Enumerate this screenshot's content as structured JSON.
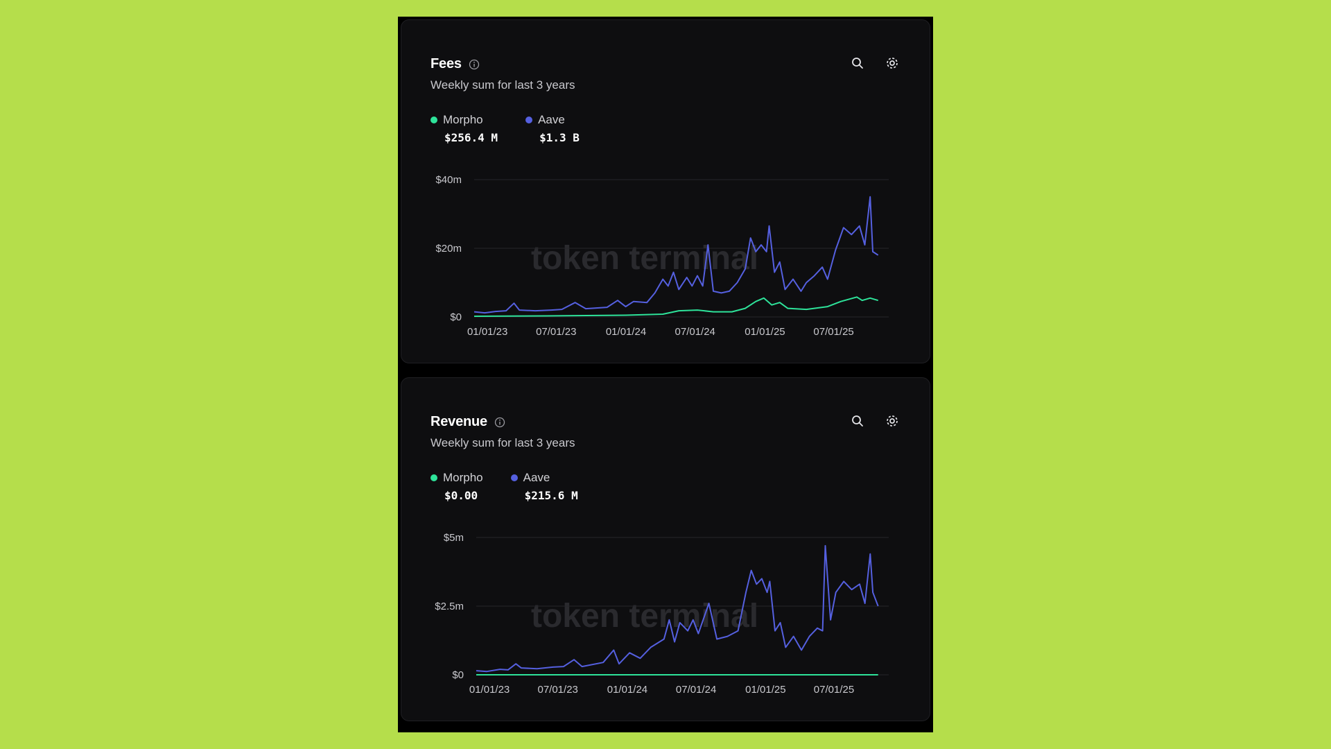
{
  "colors": {
    "background": "#b5de4b",
    "morpho": "#2ee39a",
    "aave": "#5560e0",
    "grid": "#25252a"
  },
  "icons": {
    "info": "info-icon",
    "search": "search-icon",
    "settings": "gear-icon"
  },
  "watermark": "token terminal",
  "fees": {
    "title": "Fees",
    "subtitle": "Weekly sum for last 3 years",
    "legend": [
      {
        "name": "Morpho",
        "value": "$256.4 M"
      },
      {
        "name": "Aave",
        "value": "$1.3 B"
      }
    ]
  },
  "revenue": {
    "title": "Revenue",
    "subtitle": "Weekly sum for last 3 years",
    "legend": [
      {
        "name": "Morpho",
        "value": "$0.00"
      },
      {
        "name": "Aave",
        "value": "$215.6 M"
      }
    ]
  },
  "chart_data": [
    {
      "type": "line",
      "title": "Fees",
      "x_tick_labels": [
        "01/01/23",
        "07/01/23",
        "01/01/24",
        "07/01/24",
        "01/01/25",
        "07/01/25"
      ],
      "y_tick_labels": [
        "$0",
        "$20m",
        "$40m"
      ],
      "ylim": [
        0,
        40
      ],
      "y_unit": "millions USD",
      "grid": true,
      "legend_position": "top-left",
      "x_start": "2022-11-27",
      "x_end": "2025-11-23",
      "series": [
        {
          "name": "Aave",
          "color": "#5560e0",
          "points": [
            [
              "2022-11-27",
              1.5
            ],
            [
              "2022-12-25",
              1.2
            ],
            [
              "2023-01-22",
              1.6
            ],
            [
              "2023-02-19",
              1.8
            ],
            [
              "2023-03-12",
              4.0
            ],
            [
              "2023-03-26",
              2.0
            ],
            [
              "2023-05-07",
              1.8
            ],
            [
              "2023-06-18",
              2.0
            ],
            [
              "2023-07-16",
              2.2
            ],
            [
              "2023-08-20",
              4.2
            ],
            [
              "2023-09-17",
              2.4
            ],
            [
              "2023-11-12",
              2.8
            ],
            [
              "2023-12-10",
              4.8
            ],
            [
              "2023-12-31",
              3.0
            ],
            [
              "2024-01-21",
              4.5
            ],
            [
              "2024-02-25",
              4.2
            ],
            [
              "2024-03-17",
              7.0
            ],
            [
              "2024-04-07",
              11.0
            ],
            [
              "2024-04-21",
              9.0
            ],
            [
              "2024-05-05",
              13.0
            ],
            [
              "2024-05-19",
              8.0
            ],
            [
              "2024-06-09",
              11.5
            ],
            [
              "2024-06-23",
              9.0
            ],
            [
              "2024-07-07",
              12.0
            ],
            [
              "2024-07-21",
              9.0
            ],
            [
              "2024-08-04",
              21.0
            ],
            [
              "2024-08-18",
              7.5
            ],
            [
              "2024-09-08",
              7.0
            ],
            [
              "2024-09-29",
              7.5
            ],
            [
              "2024-10-20",
              10.0
            ],
            [
              "2024-11-10",
              14.0
            ],
            [
              "2024-11-24",
              23.0
            ],
            [
              "2024-12-08",
              19.0
            ],
            [
              "2024-12-22",
              21.0
            ],
            [
              "2025-01-05",
              19.0
            ],
            [
              "2025-01-12",
              26.5
            ],
            [
              "2025-01-26",
              13.0
            ],
            [
              "2025-02-09",
              16.0
            ],
            [
              "2025-02-23",
              8.0
            ],
            [
              "2025-03-16",
              11.0
            ],
            [
              "2025-04-06",
              7.5
            ],
            [
              "2025-04-20",
              10.0
            ],
            [
              "2025-05-11",
              12.0
            ],
            [
              "2025-06-01",
              14.5
            ],
            [
              "2025-06-15",
              11.0
            ],
            [
              "2025-07-06",
              19.5
            ],
            [
              "2025-07-27",
              26.0
            ],
            [
              "2025-08-17",
              24.0
            ],
            [
              "2025-09-07",
              26.5
            ],
            [
              "2025-09-21",
              21.0
            ],
            [
              "2025-10-05",
              35.0
            ],
            [
              "2025-10-12",
              19.0
            ],
            [
              "2025-10-26",
              18.0
            ]
          ]
        },
        {
          "name": "Morpho",
          "color": "#2ee39a",
          "points": [
            [
              "2022-11-27",
              0.2
            ],
            [
              "2023-06-04",
              0.3
            ],
            [
              "2023-12-31",
              0.5
            ],
            [
              "2024-04-07",
              0.8
            ],
            [
              "2024-05-19",
              1.8
            ],
            [
              "2024-07-07",
              2.0
            ],
            [
              "2024-08-18",
              1.5
            ],
            [
              "2024-10-06",
              1.5
            ],
            [
              "2024-11-10",
              2.5
            ],
            [
              "2024-12-08",
              4.5
            ],
            [
              "2024-12-29",
              5.5
            ],
            [
              "2025-01-19",
              3.5
            ],
            [
              "2025-02-09",
              4.2
            ],
            [
              "2025-03-02",
              2.5
            ],
            [
              "2025-04-20",
              2.2
            ],
            [
              "2025-06-15",
              3.0
            ],
            [
              "2025-07-20",
              4.5
            ],
            [
              "2025-08-31",
              5.8
            ],
            [
              "2025-09-14",
              4.8
            ],
            [
              "2025-10-05",
              5.5
            ],
            [
              "2025-10-26",
              4.8
            ]
          ]
        }
      ]
    },
    {
      "type": "line",
      "title": "Revenue",
      "x_tick_labels": [
        "01/01/23",
        "07/01/23",
        "01/01/24",
        "07/01/24",
        "01/01/25",
        "07/01/25"
      ],
      "y_tick_labels": [
        "$0",
        "$2.5m",
        "$5m"
      ],
      "ylim": [
        0,
        5
      ],
      "y_unit": "millions USD",
      "grid": true,
      "legend_position": "top-left",
      "x_start": "2022-11-27",
      "x_end": "2025-11-23",
      "series": [
        {
          "name": "Aave",
          "color": "#5560e0",
          "points": [
            [
              "2022-11-27",
              0.15
            ],
            [
              "2022-12-25",
              0.12
            ],
            [
              "2023-01-29",
              0.2
            ],
            [
              "2023-02-19",
              0.18
            ],
            [
              "2023-03-12",
              0.4
            ],
            [
              "2023-03-26",
              0.25
            ],
            [
              "2023-05-07",
              0.22
            ],
            [
              "2023-06-18",
              0.28
            ],
            [
              "2023-07-16",
              0.3
            ],
            [
              "2023-08-13",
              0.55
            ],
            [
              "2023-09-03",
              0.3
            ],
            [
              "2023-10-29",
              0.45
            ],
            [
              "2023-11-26",
              0.9
            ],
            [
              "2023-12-10",
              0.4
            ],
            [
              "2024-01-07",
              0.8
            ],
            [
              "2024-02-04",
              0.6
            ],
            [
              "2024-03-03",
              1.0
            ],
            [
              "2024-04-07",
              1.3
            ],
            [
              "2024-04-21",
              2.0
            ],
            [
              "2024-05-05",
              1.2
            ],
            [
              "2024-05-19",
              1.9
            ],
            [
              "2024-06-09",
              1.6
            ],
            [
              "2024-06-23",
              2.0
            ],
            [
              "2024-07-07",
              1.5
            ],
            [
              "2024-08-04",
              2.6
            ],
            [
              "2024-08-25",
              1.3
            ],
            [
              "2024-09-22",
              1.4
            ],
            [
              "2024-10-20",
              1.6
            ],
            [
              "2024-11-10",
              3.0
            ],
            [
              "2024-11-24",
              3.8
            ],
            [
              "2024-12-08",
              3.3
            ],
            [
              "2024-12-22",
              3.5
            ],
            [
              "2025-01-05",
              3.0
            ],
            [
              "2025-01-12",
              3.4
            ],
            [
              "2025-01-26",
              1.6
            ],
            [
              "2025-02-09",
              1.9
            ],
            [
              "2025-02-23",
              1.0
            ],
            [
              "2025-03-16",
              1.4
            ],
            [
              "2025-04-06",
              0.9
            ],
            [
              "2025-04-27",
              1.4
            ],
            [
              "2025-05-18",
              1.7
            ],
            [
              "2025-06-01",
              1.6
            ],
            [
              "2025-06-08",
              4.7
            ],
            [
              "2025-06-22",
              2.0
            ],
            [
              "2025-07-06",
              3.0
            ],
            [
              "2025-07-27",
              3.4
            ],
            [
              "2025-08-17",
              3.1
            ],
            [
              "2025-09-07",
              3.3
            ],
            [
              "2025-09-21",
              2.6
            ],
            [
              "2025-10-05",
              4.4
            ],
            [
              "2025-10-12",
              3.0
            ],
            [
              "2025-10-26",
              2.5
            ]
          ]
        },
        {
          "name": "Morpho",
          "color": "#2ee39a",
          "points": [
            [
              "2022-11-27",
              0
            ],
            [
              "2025-10-26",
              0
            ]
          ]
        }
      ]
    }
  ]
}
